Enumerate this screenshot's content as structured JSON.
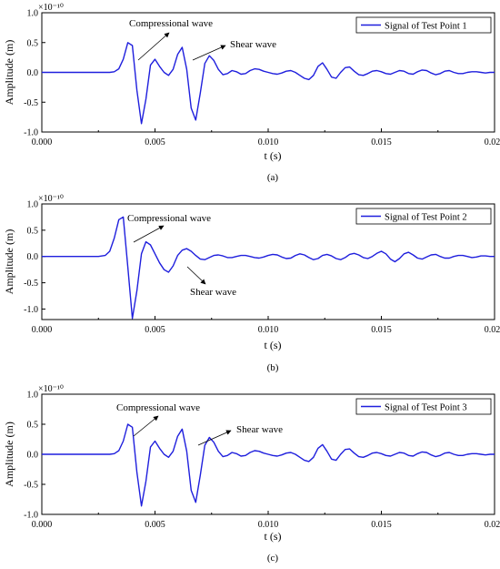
{
  "chart_data": [
    {
      "type": "line",
      "panel_label": "(a)",
      "xlabel": "t (s)",
      "ylabel": "Amplitude (m)",
      "y_exponent": "×10⁻¹⁰",
      "xlim": [
        0.0,
        0.02
      ],
      "ylim": [
        -1.0,
        1.0
      ],
      "x_ticks": [
        "0.000",
        "0.005",
        "0.010",
        "0.015",
        "0.020"
      ],
      "y_ticks": [
        "-1.0",
        "-0.5",
        "0.0",
        "0.5",
        "1.0"
      ],
      "legend": "Signal of Test Point 1",
      "legend_position": "top-right",
      "color": "#1f1fdd",
      "annotations": [
        {
          "text": "Compressional wave",
          "points_to": [
            0.0043,
            0.2
          ]
        },
        {
          "text": "Shear wave",
          "points_to": [
            0.0066,
            0.2
          ]
        }
      ],
      "series": [
        {
          "x": [
            0,
            0.003,
            0.0032,
            0.0034,
            0.0036,
            0.0038,
            0.004,
            0.0042,
            0.0044,
            0.0046,
            0.0048,
            0.005,
            0.0052,
            0.0054,
            0.0056,
            0.0058,
            0.006,
            0.0062,
            0.0064,
            0.0066,
            0.0068,
            0.007,
            0.0072,
            0.0074,
            0.0076,
            0.0078,
            0.008,
            0.0082,
            0.0084,
            0.0086,
            0.0088,
            0.009,
            0.0092,
            0.0094,
            0.0096,
            0.0098,
            0.01,
            0.0102,
            0.0104,
            0.0106,
            0.0108,
            0.011,
            0.0112,
            0.0114,
            0.0116,
            0.0118,
            0.012,
            0.0122,
            0.0124,
            0.0126,
            0.0128,
            0.013,
            0.0132,
            0.0134,
            0.0136,
            0.0138,
            0.014,
            0.0142,
            0.0144,
            0.0146,
            0.0148,
            0.015,
            0.0152,
            0.0154,
            0.0156,
            0.0158,
            0.016,
            0.0162,
            0.0164,
            0.0166,
            0.0168,
            0.017,
            0.0172,
            0.0174,
            0.0176,
            0.0178,
            0.018,
            0.0182,
            0.0184,
            0.0186,
            0.0188,
            0.019,
            0.0192,
            0.0194,
            0.0196,
            0.0198,
            0.02
          ],
          "y": [
            0,
            0,
            0.01,
            0.06,
            0.22,
            0.5,
            0.45,
            -0.3,
            -0.86,
            -0.45,
            0.12,
            0.22,
            0.1,
            0.0,
            -0.05,
            0.05,
            0.3,
            0.42,
            0.05,
            -0.6,
            -0.8,
            -0.35,
            0.15,
            0.28,
            0.2,
            0.05,
            -0.04,
            -0.02,
            0.03,
            0.01,
            -0.03,
            -0.02,
            0.03,
            0.06,
            0.05,
            0.02,
            0.0,
            -0.02,
            -0.03,
            -0.01,
            0.02,
            0.03,
            0.0,
            -0.05,
            -0.1,
            -0.12,
            -0.05,
            0.1,
            0.16,
            0.05,
            -0.08,
            -0.1,
            0.0,
            0.08,
            0.09,
            0.02,
            -0.04,
            -0.05,
            -0.02,
            0.02,
            0.03,
            0.01,
            -0.02,
            -0.03,
            0.0,
            0.03,
            0.02,
            -0.02,
            -0.03,
            0.01,
            0.04,
            0.03,
            -0.01,
            -0.04,
            -0.02,
            0.02,
            0.03,
            0.0,
            -0.02,
            -0.02,
            0.0,
            0.01,
            0.01,
            0.0,
            -0.01,
            0.0,
            0.0
          ]
        }
      ]
    },
    {
      "type": "line",
      "panel_label": "(b)",
      "xlabel": "t (s)",
      "ylabel": "Amplitude (m)",
      "y_exponent": "×10⁻¹⁰",
      "xlim": [
        0.0,
        0.02
      ],
      "ylim": [
        -1.2,
        1.0
      ],
      "x_ticks": [
        "0.000",
        "0.005",
        "0.010",
        "0.015",
        "0.020"
      ],
      "y_ticks": [
        "-1.0",
        "-0.5",
        "0.0",
        "0.5",
        "1.0"
      ],
      "legend": "Signal of Test Point 2",
      "legend_position": "top-right",
      "color": "#1f1fdd",
      "annotations": [
        {
          "text": "Compressional wave",
          "points_to": [
            0.004,
            0.3
          ]
        },
        {
          "text": "Shear wave",
          "points_to": [
            0.0062,
            -0.1
          ]
        }
      ],
      "series": [
        {
          "x": [
            0,
            0.0025,
            0.0028,
            0.003,
            0.0032,
            0.0034,
            0.0036,
            0.0038,
            0.004,
            0.0042,
            0.0044,
            0.0046,
            0.0048,
            0.005,
            0.0052,
            0.0054,
            0.0056,
            0.0058,
            0.006,
            0.0062,
            0.0064,
            0.0066,
            0.0068,
            0.007,
            0.0072,
            0.0074,
            0.0076,
            0.0078,
            0.008,
            0.0082,
            0.0084,
            0.0086,
            0.0088,
            0.009,
            0.0092,
            0.0094,
            0.0096,
            0.0098,
            0.01,
            0.0102,
            0.0104,
            0.0106,
            0.0108,
            0.011,
            0.0112,
            0.0114,
            0.0116,
            0.0118,
            0.012,
            0.0122,
            0.0124,
            0.0126,
            0.0128,
            0.013,
            0.0132,
            0.0134,
            0.0136,
            0.0138,
            0.014,
            0.0142,
            0.0144,
            0.0146,
            0.0148,
            0.015,
            0.0152,
            0.0154,
            0.0156,
            0.0158,
            0.016,
            0.0162,
            0.0164,
            0.0166,
            0.0168,
            0.017,
            0.0172,
            0.0174,
            0.0176,
            0.0178,
            0.018,
            0.0182,
            0.0184,
            0.0186,
            0.0188,
            0.019,
            0.0192,
            0.0194,
            0.0196,
            0.0198,
            0.02
          ],
          "y": [
            0,
            0,
            0.02,
            0.1,
            0.35,
            0.7,
            0.75,
            -0.2,
            -1.18,
            -0.65,
            0.05,
            0.28,
            0.22,
            0.05,
            -0.12,
            -0.25,
            -0.3,
            -0.18,
            0.02,
            0.12,
            0.15,
            0.1,
            0.02,
            -0.05,
            -0.06,
            -0.02,
            0.02,
            0.03,
            0.01,
            -0.02,
            -0.02,
            0.0,
            0.02,
            0.02,
            0.0,
            -0.02,
            -0.03,
            -0.01,
            0.02,
            0.04,
            0.03,
            -0.01,
            -0.04,
            -0.03,
            0.02,
            0.05,
            0.03,
            -0.02,
            -0.06,
            -0.04,
            0.02,
            0.04,
            0.01,
            -0.04,
            -0.06,
            -0.02,
            0.04,
            0.06,
            0.03,
            -0.02,
            -0.04,
            0.0,
            0.06,
            0.1,
            0.05,
            -0.05,
            -0.1,
            -0.04,
            0.05,
            0.08,
            0.03,
            -0.03,
            -0.05,
            -0.01,
            0.03,
            0.04,
            0.0,
            -0.03,
            -0.03,
            0.0,
            0.02,
            0.02,
            0.0,
            -0.02,
            -0.01,
            0.01,
            0.01,
            0.0,
            0.0
          ]
        }
      ]
    },
    {
      "type": "line",
      "panel_label": "(c)",
      "xlabel": "t (s)",
      "ylabel": "Amplitude (m)",
      "y_exponent": "×10⁻¹⁰",
      "xlim": [
        0.0,
        0.02
      ],
      "ylim": [
        -1.0,
        1.0
      ],
      "x_ticks": [
        "0.000",
        "0.005",
        "0.010",
        "0.015",
        "0.020"
      ],
      "y_ticks": [
        "-1.0",
        "-0.5",
        "0.0",
        "0.5",
        "1.0"
      ],
      "legend": "Signal of Test Point 3",
      "legend_position": "top-right",
      "color": "#1f1fdd",
      "annotations": [
        {
          "text": "Compressional wave",
          "points_to": [
            0.0043,
            0.2
          ]
        },
        {
          "text": "Shear wave",
          "points_to": [
            0.0066,
            0.2
          ]
        }
      ],
      "series": [
        {
          "x": [
            0,
            0.003,
            0.0032,
            0.0034,
            0.0036,
            0.0038,
            0.004,
            0.0042,
            0.0044,
            0.0046,
            0.0048,
            0.005,
            0.0052,
            0.0054,
            0.0056,
            0.0058,
            0.006,
            0.0062,
            0.0064,
            0.0066,
            0.0068,
            0.007,
            0.0072,
            0.0074,
            0.0076,
            0.0078,
            0.008,
            0.0082,
            0.0084,
            0.0086,
            0.0088,
            0.009,
            0.0092,
            0.0094,
            0.0096,
            0.0098,
            0.01,
            0.0102,
            0.0104,
            0.0106,
            0.0108,
            0.011,
            0.0112,
            0.0114,
            0.0116,
            0.0118,
            0.012,
            0.0122,
            0.0124,
            0.0126,
            0.0128,
            0.013,
            0.0132,
            0.0134,
            0.0136,
            0.0138,
            0.014,
            0.0142,
            0.0144,
            0.0146,
            0.0148,
            0.015,
            0.0152,
            0.0154,
            0.0156,
            0.0158,
            0.016,
            0.0162,
            0.0164,
            0.0166,
            0.0168,
            0.017,
            0.0172,
            0.0174,
            0.0176,
            0.0178,
            0.018,
            0.0182,
            0.0184,
            0.0186,
            0.0188,
            0.019,
            0.0192,
            0.0194,
            0.0196,
            0.0198,
            0.02
          ],
          "y": [
            0,
            0,
            0.01,
            0.06,
            0.22,
            0.5,
            0.45,
            -0.3,
            -0.86,
            -0.45,
            0.12,
            0.22,
            0.1,
            0.0,
            -0.05,
            0.05,
            0.3,
            0.42,
            0.05,
            -0.6,
            -0.8,
            -0.35,
            0.15,
            0.28,
            0.2,
            0.05,
            -0.04,
            -0.02,
            0.03,
            0.01,
            -0.03,
            -0.02,
            0.03,
            0.06,
            0.05,
            0.02,
            0.0,
            -0.02,
            -0.03,
            -0.01,
            0.02,
            0.03,
            0.0,
            -0.05,
            -0.1,
            -0.12,
            -0.05,
            0.1,
            0.16,
            0.05,
            -0.08,
            -0.1,
            0.0,
            0.08,
            0.09,
            0.02,
            -0.04,
            -0.05,
            -0.02,
            0.02,
            0.03,
            0.01,
            -0.02,
            -0.03,
            0.0,
            0.03,
            0.02,
            -0.02,
            -0.03,
            0.01,
            0.04,
            0.03,
            -0.01,
            -0.04,
            -0.02,
            0.02,
            0.03,
            0.0,
            -0.02,
            -0.02,
            0.0,
            0.01,
            0.01,
            0.0,
            -0.01,
            0.0,
            0.0
          ]
        }
      ]
    }
  ]
}
